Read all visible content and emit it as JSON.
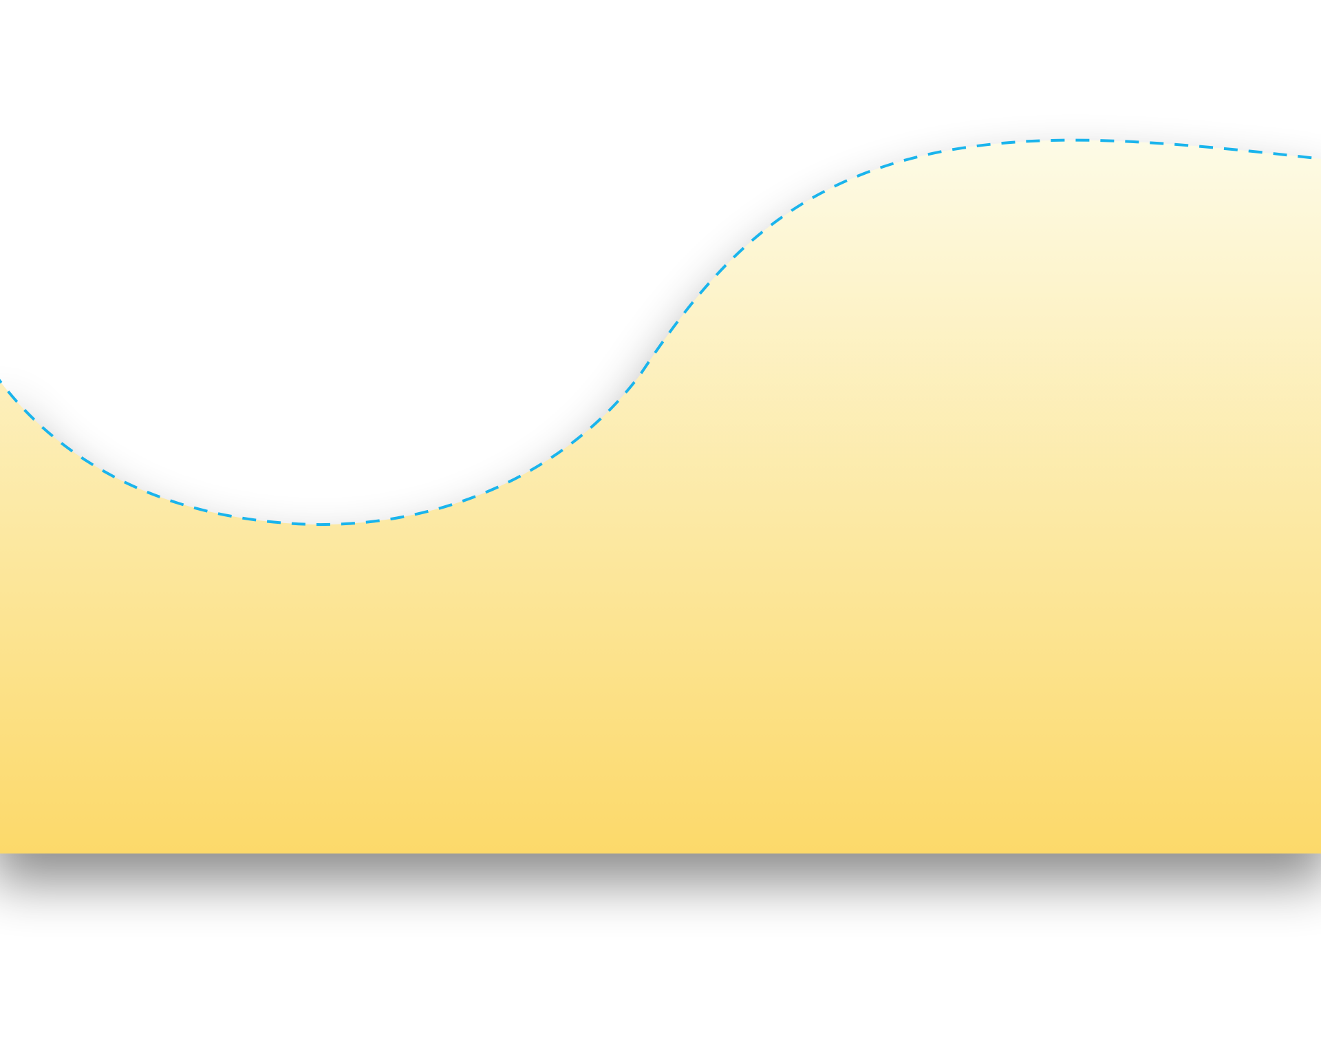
{
  "colors": {
    "background": "#ffffff",
    "fill_top": "#fdfbe6",
    "fill_bottom": "#fcd96a",
    "outline_dash": "#1ab4ec",
    "shadow": "#000000"
  },
  "shape": {
    "name": "wave-banner",
    "outline_style": "dashed"
  }
}
